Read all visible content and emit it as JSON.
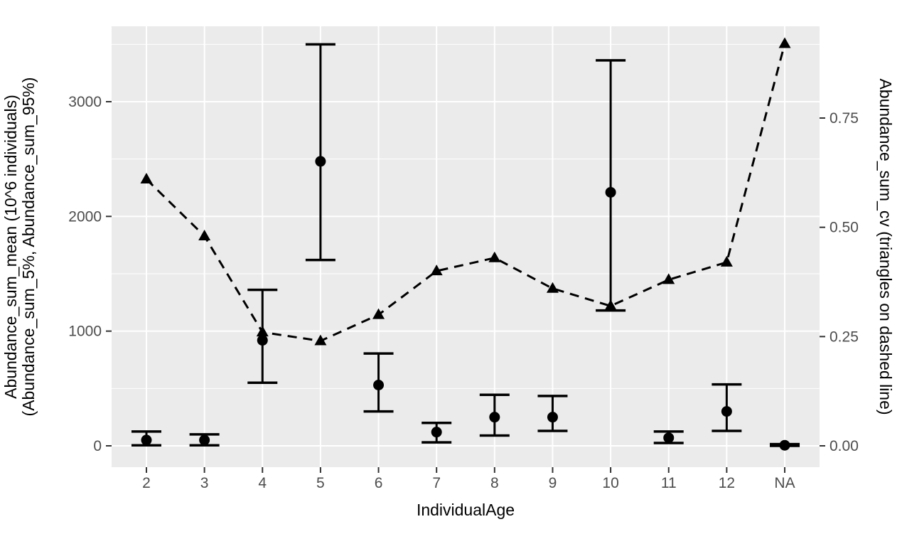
{
  "chart_data": {
    "type": "line",
    "title": "",
    "xlabel": "IndividualAge",
    "ylabel_left_line1": "Abundance_sum_mean (10^6 individuals)",
    "ylabel_left_line2": "(Abundance_sum_5%, Abundance_sum_95%)",
    "ylabel_right": "Abundance_sum_cv (triangles on dashed line)",
    "categories": [
      "2",
      "3",
      "4",
      "5",
      "6",
      "7",
      "8",
      "9",
      "10",
      "11",
      "12",
      "NA"
    ],
    "series": [
      {
        "name": "Abundance_sum_mean",
        "type": "points_with_errorbars",
        "axis": "left",
        "means": [
          50,
          50,
          920,
          2480,
          530,
          120,
          250,
          250,
          2210,
          70,
          300,
          5
        ],
        "low_5pct": [
          5,
          5,
          550,
          1620,
          300,
          30,
          90,
          130,
          1180,
          25,
          130,
          0
        ],
        "high_95pct": [
          125,
          100,
          1360,
          3500,
          805,
          200,
          445,
          435,
          3360,
          125,
          535,
          15
        ]
      },
      {
        "name": "Abundance_sum_cv",
        "type": "dashed_line_with_triangles",
        "axis": "right",
        "values": [
          0.61,
          0.48,
          0.26,
          0.24,
          0.3,
          0.4,
          0.43,
          0.36,
          0.32,
          0.38,
          0.42,
          0.92
        ]
      }
    ],
    "left_axis": {
      "ticks": [
        0,
        1000,
        2000,
        3000
      ],
      "minor_ticks": [
        500,
        1500,
        2500,
        3500
      ],
      "range": [
        -190,
        3660
      ]
    },
    "right_axis": {
      "tick_values": [
        0,
        0.25,
        0.5,
        0.75
      ],
      "tick_labels": [
        "0.00",
        "0.25",
        "0.50",
        "0.75"
      ],
      "range": [
        -0.05,
        0.96
      ]
    },
    "grid": "on",
    "legend": "none",
    "style": {
      "panel_bg": "#ebebeb",
      "grid_color": "#ffffff",
      "tick_color": "#333333",
      "tick_label_color": "#4d4d4d",
      "title_color": "#000000",
      "data_color": "#000000"
    }
  }
}
